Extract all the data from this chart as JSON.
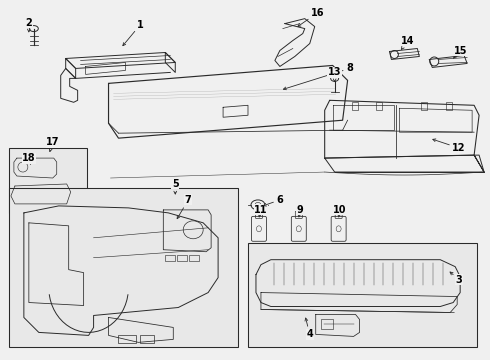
{
  "background_color": "#f0f0f0",
  "line_color": "#2a2a2a",
  "label_color": "#000000",
  "fig_width": 4.9,
  "fig_height": 3.6,
  "dpi": 100,
  "lw": 0.7
}
